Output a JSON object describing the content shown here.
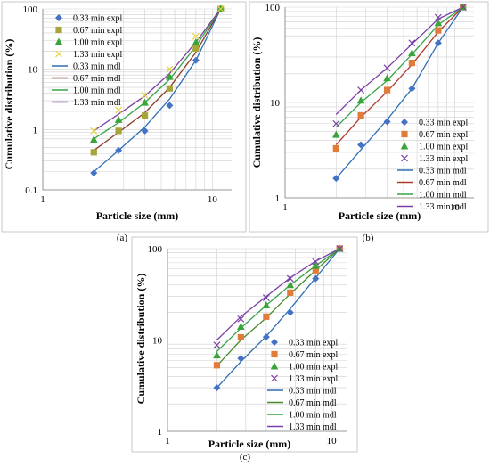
{
  "chart_data": [
    {
      "panel": "(a)",
      "type": "scatter",
      "xlabel": "Particle size (mm)",
      "ylabel": "Cumulative distribution (%)",
      "xscale": "log",
      "yscale": "log",
      "xlim": [
        1,
        13
      ],
      "ylim": [
        0.1,
        100
      ],
      "xticks": [
        "1",
        "10"
      ],
      "yticks": [
        "0.1",
        "1",
        "10",
        "100"
      ],
      "grid": true,
      "legend_position": "top-left",
      "series": [
        {
          "name": "0.33 min expl",
          "kind": "marker",
          "marker": "diamond",
          "color": "#4472c4",
          "x": [
            2,
            2.8,
            4,
            5.6,
            8,
            11.2
          ],
          "y": [
            0.19,
            0.45,
            0.95,
            2.5,
            14,
            100
          ]
        },
        {
          "name": "0.67 min expl",
          "kind": "marker",
          "marker": "square",
          "color": "#a5a53a",
          "x": [
            2,
            2.8,
            4,
            5.6,
            8,
            11.2
          ],
          "y": [
            0.42,
            0.95,
            1.7,
            4.8,
            22,
            100
          ]
        },
        {
          "name": "1.00 min expl",
          "kind": "marker",
          "marker": "triangle",
          "color": "#3aa33a",
          "x": [
            2,
            2.8,
            4,
            5.6,
            8,
            11.2
          ],
          "y": [
            0.68,
            1.45,
            2.8,
            7.5,
            28,
            100
          ]
        },
        {
          "name": "1.33 min expl",
          "kind": "marker",
          "marker": "x",
          "color": "#e6d23c",
          "x": [
            2,
            2.8,
            4,
            5.6,
            8,
            11.2
          ],
          "y": [
            0.95,
            2.1,
            3.7,
            10,
            35,
            100
          ]
        },
        {
          "name": "0.33 min mdl",
          "kind": "line",
          "color": "#2f6fb6",
          "x": [
            2,
            2.8,
            4,
            5.6,
            8,
            11.2
          ],
          "y": [
            0.2,
            0.45,
            1.1,
            3.2,
            14,
            100
          ]
        },
        {
          "name": "0.67 min mdl",
          "kind": "line",
          "color": "#8a3f2b",
          "x": [
            2,
            2.8,
            4,
            5.6,
            8,
            11.2
          ],
          "y": [
            0.45,
            0.9,
            1.9,
            5,
            19,
            100
          ]
        },
        {
          "name": "1.00 min mdl",
          "kind": "line",
          "color": "#37a34a",
          "x": [
            2,
            2.8,
            4,
            5.6,
            8,
            11.2
          ],
          "y": [
            0.7,
            1.3,
            2.8,
            6.8,
            24,
            100
          ]
        },
        {
          "name": "1.33 min mdl",
          "kind": "line",
          "color": "#7a3fa6",
          "x": [
            2,
            2.8,
            4,
            5.6,
            8,
            11.2
          ],
          "y": [
            0.95,
            1.8,
            3.6,
            8.5,
            28,
            100
          ]
        }
      ]
    },
    {
      "panel": "(b)",
      "type": "scatter",
      "xlabel": "Particle size (mm)",
      "ylabel": "Cumulative distribution (%)",
      "xscale": "log",
      "yscale": "log",
      "xlim": [
        1,
        13
      ],
      "ylim": [
        1,
        100
      ],
      "xticks": [
        "1",
        "10"
      ],
      "yticks": [
        "1",
        "10",
        "100"
      ],
      "grid": true,
      "legend_position": "bottom-right",
      "series": [
        {
          "name": "0.33 min expl",
          "kind": "marker",
          "marker": "diamond",
          "color": "#4472c4",
          "x": [
            2,
            2.8,
            4,
            5.6,
            8,
            11.2
          ],
          "y": [
            1.6,
            3.6,
            6.3,
            14,
            42,
            100
          ]
        },
        {
          "name": "0.67 min expl",
          "kind": "marker",
          "marker": "square",
          "color": "#e07b39",
          "x": [
            2,
            2.8,
            4,
            5.6,
            8,
            11.2
          ],
          "y": [
            3.3,
            7.3,
            13.5,
            26,
            57,
            100
          ]
        },
        {
          "name": "1.00 min expl",
          "kind": "marker",
          "marker": "triangle",
          "color": "#3aa33a",
          "x": [
            2,
            2.8,
            4,
            5.6,
            8,
            11.2
          ],
          "y": [
            4.6,
            10.5,
            18,
            33,
            68,
            100
          ]
        },
        {
          "name": "1.33 min expl",
          "kind": "marker",
          "marker": "x",
          "color": "#7a3fa6",
          "x": [
            2,
            2.8,
            4,
            5.6,
            8,
            11.2
          ],
          "y": [
            6,
            13.5,
            23,
            42,
            78,
            100
          ]
        },
        {
          "name": "0.33 min mdl",
          "kind": "line",
          "color": "#2f6fb6",
          "x": [
            2,
            2.8,
            4,
            5.6,
            8,
            11.2
          ],
          "y": [
            1.6,
            3.2,
            6.6,
            14,
            42,
            100
          ]
        },
        {
          "name": "0.67 min mdl",
          "kind": "line",
          "color": "#b03a2e",
          "x": [
            2,
            2.8,
            4,
            5.6,
            8,
            11.2
          ],
          "y": [
            3.6,
            7,
            13,
            25,
            55,
            100
          ]
        },
        {
          "name": "1.00 min mdl",
          "kind": "line",
          "color": "#37a34a",
          "x": [
            2,
            2.8,
            4,
            5.6,
            8,
            11.2
          ],
          "y": [
            5.5,
            10,
            17,
            32,
            65,
            100
          ]
        },
        {
          "name": "1.33 min mdl",
          "kind": "line",
          "color": "#7a3fa6",
          "x": [
            2,
            2.8,
            4,
            5.6,
            8,
            11.2
          ],
          "y": [
            7.5,
            13.5,
            23,
            41,
            75,
            100
          ]
        }
      ]
    },
    {
      "panel": "(c)",
      "type": "scatter",
      "xlabel": "Particle size (mm)",
      "ylabel": "Cumulative distribution (%)",
      "xscale": "log",
      "yscale": "log",
      "xlim": [
        1,
        12.5
      ],
      "ylim": [
        1,
        100
      ],
      "xticks": [
        "1",
        "10"
      ],
      "yticks": [
        "1",
        "10",
        "100"
      ],
      "grid": true,
      "legend_position": "bottom-right",
      "series": [
        {
          "name": "0.33 min  expl",
          "kind": "marker",
          "marker": "diamond",
          "color": "#4472c4",
          "x": [
            2,
            2.8,
            4,
            5.6,
            8,
            11.2
          ],
          "y": [
            3,
            6.3,
            10.8,
            20,
            47,
            100
          ]
        },
        {
          "name": "0.67 min expl",
          "kind": "marker",
          "marker": "square",
          "color": "#e07b39",
          "x": [
            2,
            2.8,
            4,
            5.6,
            8,
            11.2
          ],
          "y": [
            5.3,
            10.7,
            18,
            33,
            58,
            100
          ]
        },
        {
          "name": "1.00 min expl",
          "kind": "marker",
          "marker": "triangle",
          "color": "#3aa33a",
          "x": [
            2,
            2.8,
            4,
            5.6,
            8,
            11.2
          ],
          "y": [
            6.8,
            14,
            24,
            40,
            65,
            100
          ]
        },
        {
          "name": "1.33 min expl",
          "kind": "marker",
          "marker": "x",
          "color": "#7a3fa6",
          "x": [
            2,
            2.8,
            4,
            5.6,
            8,
            11.2
          ],
          "y": [
            8.8,
            17,
            29,
            47,
            72,
            100
          ]
        },
        {
          "name": "0.33 min mdl",
          "kind": "line",
          "color": "#2f6fb6",
          "x": [
            2,
            2.8,
            4,
            5.6,
            8,
            11.2
          ],
          "y": [
            3,
            5.8,
            11,
            22,
            48,
            100
          ]
        },
        {
          "name": "0.67 min mdl",
          "kind": "line",
          "color": "#4a8a2e",
          "x": [
            2,
            2.8,
            4,
            5.6,
            8,
            11.2
          ],
          "y": [
            5.2,
            10,
            17.5,
            32,
            58,
            100
          ]
        },
        {
          "name": "1.00 min mdl",
          "kind": "line",
          "color": "#37a34a",
          "x": [
            2,
            2.8,
            4,
            5.6,
            8,
            11.2
          ],
          "y": [
            7.5,
            13.5,
            24,
            40,
            65,
            100
          ]
        },
        {
          "name": "1.33 min mdl",
          "kind": "line",
          "color": "#7a3fa6",
          "x": [
            2,
            2.8,
            4,
            5.6,
            8,
            11.2
          ],
          "y": [
            10,
            18,
            30,
            48,
            73,
            100
          ]
        }
      ]
    }
  ]
}
